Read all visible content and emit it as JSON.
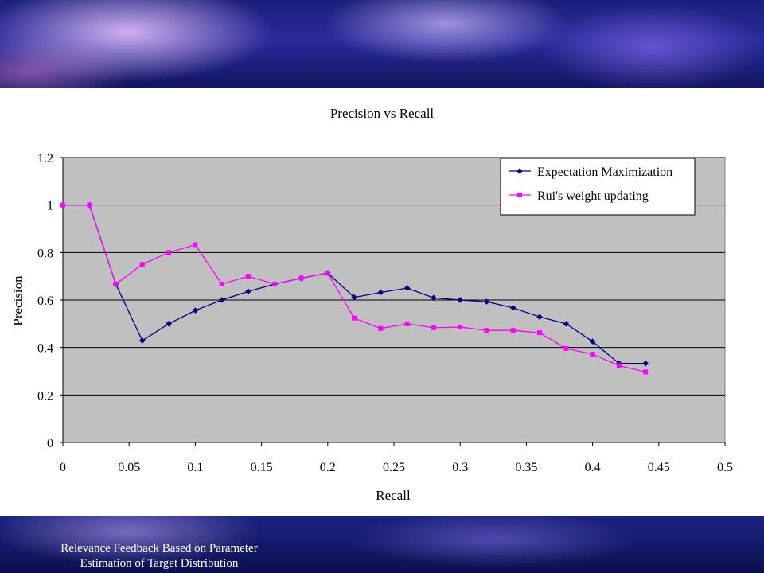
{
  "slide": {
    "footer_line1": "Relevance Feedback Based on Parameter",
    "footer_line2": "Estimation of Target Distribution"
  },
  "chart_data": {
    "type": "line",
    "title": "Precision vs Recall",
    "xlabel": "Recall",
    "ylabel": "Precision",
    "xlim": [
      0,
      0.5
    ],
    "ylim": [
      0,
      1.2
    ],
    "xticks": [
      "0",
      "0.05",
      "0.1",
      "0.15",
      "0.2",
      "0.25",
      "0.3",
      "0.35",
      "0.4",
      "0.45",
      "0.5"
    ],
    "yticks": [
      "0",
      "0.2",
      "0.4",
      "0.6",
      "0.8",
      "1",
      "1.2"
    ],
    "grid": "horizontal",
    "plot_background": "#c0c0c0",
    "legend_position": "top-right",
    "series": [
      {
        "name": "Expectation Maximization",
        "color": "#000080",
        "marker": "diamond",
        "x": [
          0,
          0.02,
          0.04,
          0.06,
          0.08,
          0.1,
          0.12,
          0.14,
          0.16,
          0.18,
          0.2,
          0.22,
          0.24,
          0.26,
          0.28,
          0.3,
          0.32,
          0.34,
          0.36,
          0.38,
          0.4,
          0.42,
          0.44
        ],
        "values": [
          1.0,
          1.0,
          0.667,
          0.429,
          0.5,
          0.556,
          0.6,
          0.636,
          0.667,
          0.692,
          0.714,
          0.611,
          0.632,
          0.65,
          0.609,
          0.6,
          0.593,
          0.567,
          0.529,
          0.5,
          0.425,
          0.333,
          0.333
        ]
      },
      {
        "name": "Rui's weight updating",
        "color": "#ff00ff",
        "marker": "square",
        "x": [
          0,
          0.02,
          0.04,
          0.06,
          0.08,
          0.1,
          0.12,
          0.14,
          0.16,
          0.18,
          0.2,
          0.22,
          0.24,
          0.26,
          0.28,
          0.3,
          0.32,
          0.34,
          0.36,
          0.38,
          0.4,
          0.42,
          0.44
        ],
        "values": [
          1.0,
          1.0,
          0.667,
          0.75,
          0.8,
          0.833,
          0.667,
          0.7,
          0.667,
          0.692,
          0.714,
          0.524,
          0.48,
          0.5,
          0.483,
          0.486,
          0.472,
          0.472,
          0.462,
          0.396,
          0.372,
          0.324,
          0.297
        ]
      }
    ]
  }
}
